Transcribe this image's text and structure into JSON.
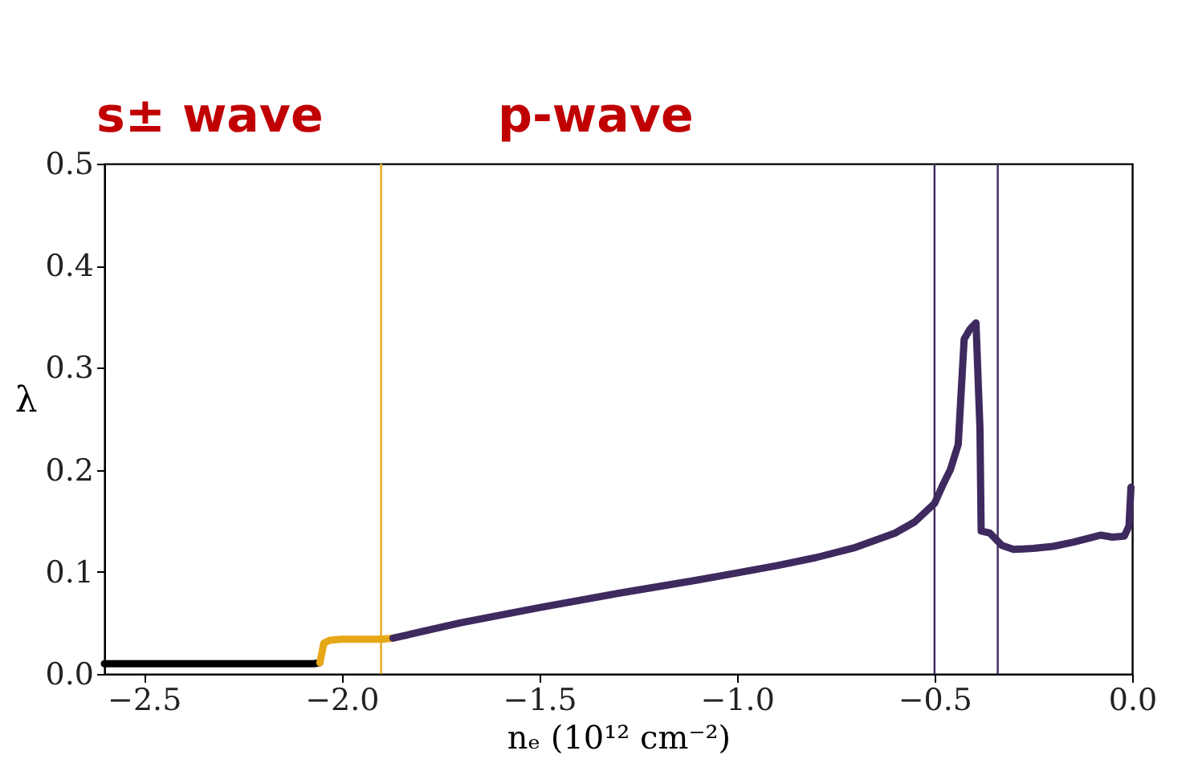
{
  "chart_data": {
    "type": "line",
    "xlabel": "nₑ (10¹² cm⁻²)",
    "ylabel": "λ",
    "annotations": [
      "s± wave",
      "p-wave"
    ],
    "xlim": [
      -2.6,
      0.0
    ],
    "ylim": [
      0.0,
      0.5
    ],
    "xticks": [
      {
        "value": -2.5,
        "label": "−2.5"
      },
      {
        "value": -2.0,
        "label": "−2.0"
      },
      {
        "value": -1.5,
        "label": "−1.5"
      },
      {
        "value": -1.0,
        "label": "−1.0"
      },
      {
        "value": -0.5,
        "label": "−0.5"
      },
      {
        "value": 0.0,
        "label": "0.0"
      }
    ],
    "yticks": [
      {
        "value": 0.0,
        "label": "0.0"
      },
      {
        "value": 0.1,
        "label": "0.1"
      },
      {
        "value": 0.2,
        "label": "0.2"
      },
      {
        "value": 0.3,
        "label": "0.3"
      },
      {
        "value": 0.4,
        "label": "0.4"
      },
      {
        "value": 0.5,
        "label": "0.5"
      }
    ],
    "grid": false,
    "marker": "none",
    "line_style": "solid",
    "series": [
      {
        "color": "#000000",
        "x": [
          -2.6,
          -2.3,
          -2.07,
          -2.055
        ],
        "values": [
          0.01,
          0.01,
          0.01,
          0.011
        ]
      },
      {
        "color": "#e6a817",
        "x": [
          -2.055,
          -2.05,
          -2.045,
          -2.03,
          -2.0,
          -1.95,
          -1.9,
          -1.87
        ],
        "values": [
          0.011,
          0.02,
          0.03,
          0.033,
          0.034,
          0.034,
          0.034,
          0.035
        ]
      },
      {
        "color": "#3f2a5f",
        "x": [
          -1.87,
          -1.7,
          -1.5,
          -1.3,
          -1.1,
          -1.0,
          -0.9,
          -0.8,
          -0.7,
          -0.6,
          -0.55,
          -0.5,
          -0.478,
          -0.46,
          -0.44,
          -0.425,
          -0.41,
          -0.395,
          -0.385,
          -0.382,
          -0.36,
          -0.33,
          -0.3,
          -0.25,
          -0.2,
          -0.15,
          -0.1,
          -0.08,
          -0.05,
          -0.02,
          -0.008,
          -0.003
        ],
        "values": [
          0.035,
          0.05,
          0.065,
          0.079,
          0.092,
          0.099,
          0.106,
          0.114,
          0.124,
          0.138,
          0.149,
          0.167,
          0.186,
          0.2,
          0.225,
          0.328,
          0.338,
          0.344,
          0.24,
          0.14,
          0.138,
          0.126,
          0.122,
          0.123,
          0.125,
          0.129,
          0.134,
          0.136,
          0.134,
          0.135,
          0.145,
          0.183
        ]
      }
    ],
    "ref_lines": [
      {
        "axis": "x",
        "value": -1.9,
        "color": "#e6a817"
      },
      {
        "axis": "x",
        "value": -0.5,
        "color": "#3f2a5f"
      },
      {
        "axis": "x",
        "value": -0.34,
        "color": "#3f2a5f"
      }
    ]
  }
}
